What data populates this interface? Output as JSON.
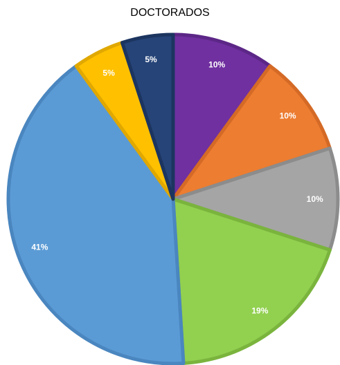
{
  "chart_data": {
    "type": "pie",
    "title": "DOCTORADOS",
    "slices": [
      {
        "value": 10,
        "label": "10%",
        "color": "#7030a0",
        "stroke": "#5c2787"
      },
      {
        "value": 10,
        "label": "10%",
        "color": "#ed7d31",
        "stroke": "#d46a26"
      },
      {
        "value": 10,
        "label": "10%",
        "color": "#a5a5a5",
        "stroke": "#8c8c8c"
      },
      {
        "value": 19,
        "label": "19%",
        "color": "#92d050",
        "stroke": "#7ab43d"
      },
      {
        "value": 41,
        "label": "41%",
        "color": "#5b9bd5",
        "stroke": "#4a86bf"
      },
      {
        "value": 5,
        "label": "5%",
        "color": "#ffc000",
        "stroke": "#e0a800"
      },
      {
        "value": 5,
        "label": "5%",
        "color": "#264478",
        "stroke": "#1c3560"
      }
    ],
    "label_color": "#ffffff",
    "start": "12 o'clock",
    "direction": "clockwise",
    "legend": "none"
  }
}
